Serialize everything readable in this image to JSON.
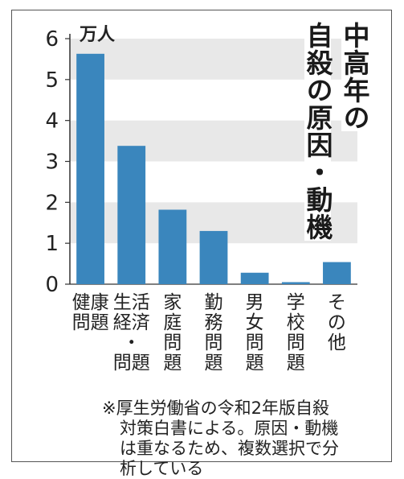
{
  "chart_data": {
    "type": "bar",
    "title_lines": [
      "中高年の",
      "自殺の原因・動機"
    ],
    "unit_label": "万人",
    "categories": [
      "健康問題",
      "生活・経済問題",
      "家庭問題",
      "勤務問題",
      "男女問題",
      "学校問題",
      "その他"
    ],
    "category_label_lines": [
      [
        "健康",
        "問題"
      ],
      [
        "生活",
        "経済",
        "・",
        "問題"
      ],
      [
        "家",
        "庭",
        "問",
        "題"
      ],
      [
        "勤",
        "務",
        "問",
        "題"
      ],
      [
        "男",
        "女",
        "問",
        "題"
      ],
      [
        "学",
        "校",
        "問",
        "題"
      ],
      [
        "そ",
        "の",
        "他"
      ]
    ],
    "values": [
      5.63,
      3.38,
      1.82,
      1.3,
      0.28,
      0.05,
      0.54
    ],
    "ylim": [
      0,
      6
    ],
    "yticks": [
      "0",
      "1",
      "2",
      "3",
      "4",
      "5",
      "6"
    ],
    "grid": "alternating horizontal bands",
    "colors": {
      "bar": "#3a86bd",
      "band": "#e8e8e8",
      "axis": "#333333"
    }
  },
  "note": {
    "lines": [
      "※厚生労働省の令和2年版自殺",
      "対策白書による。原因・動機",
      "は重なるため、複数選択で分",
      "析している"
    ]
  }
}
